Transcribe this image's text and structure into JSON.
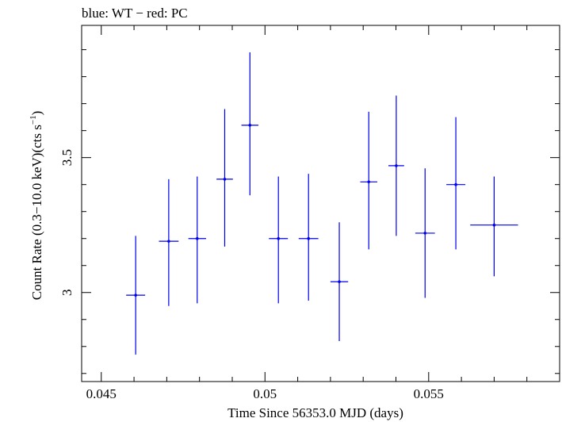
{
  "chart_data": {
    "type": "scatter",
    "title": "blue: WT − red: PC",
    "xlabel": "Time Since 56353.0 MJD (days)",
    "ylabel_main": "Count Rate (0.3−10.0 keV)(cts s",
    "ylabel_sup": "−1",
    "ylabel_close": ")",
    "xlim": [
      0.0444,
      0.059
    ],
    "ylim": [
      2.67,
      3.99
    ],
    "x_ticks": [
      0.045,
      0.05,
      0.055
    ],
    "x_tick_labels": [
      "0.045",
      "0.05",
      "0.055"
    ],
    "y_ticks": [
      3.0,
      3.5
    ],
    "y_tick_labels": [
      "3",
      "3.5"
    ],
    "series": [
      {
        "color": "#0000ee",
        "points": [
          {
            "x": 0.04605,
            "xerr": 0.00029,
            "y": 2.99,
            "ylo": 2.77,
            "yhi": 3.21
          },
          {
            "x": 0.04706,
            "xerr": 0.0003,
            "y": 3.19,
            "ylo": 2.95,
            "yhi": 3.42
          },
          {
            "x": 0.04793,
            "xerr": 0.00027,
            "y": 3.2,
            "ylo": 2.96,
            "yhi": 3.43
          },
          {
            "x": 0.04877,
            "xerr": 0.00025,
            "y": 3.42,
            "ylo": 3.17,
            "yhi": 3.68
          },
          {
            "x": 0.04954,
            "xerr": 0.00026,
            "y": 3.62,
            "ylo": 3.36,
            "yhi": 3.89
          },
          {
            "x": 0.05041,
            "xerr": 0.00029,
            "y": 3.2,
            "ylo": 2.96,
            "yhi": 3.43
          },
          {
            "x": 0.05133,
            "xerr": 0.0003,
            "y": 3.2,
            "ylo": 2.97,
            "yhi": 3.44
          },
          {
            "x": 0.05227,
            "xerr": 0.00027,
            "y": 3.04,
            "ylo": 2.82,
            "yhi": 3.26
          },
          {
            "x": 0.05317,
            "xerr": 0.00026,
            "y": 3.41,
            "ylo": 3.16,
            "yhi": 3.67
          },
          {
            "x": 0.05401,
            "xerr": 0.00024,
            "y": 3.47,
            "ylo": 3.21,
            "yhi": 3.73
          },
          {
            "x": 0.05489,
            "xerr": 0.0003,
            "y": 3.22,
            "ylo": 2.98,
            "yhi": 3.46
          },
          {
            "x": 0.05583,
            "xerr": 0.00029,
            "y": 3.4,
            "ylo": 3.16,
            "yhi": 3.65
          },
          {
            "x": 0.057,
            "xerr": 0.00073,
            "y": 3.25,
            "ylo": 3.06,
            "yhi": 3.43
          }
        ]
      }
    ]
  }
}
